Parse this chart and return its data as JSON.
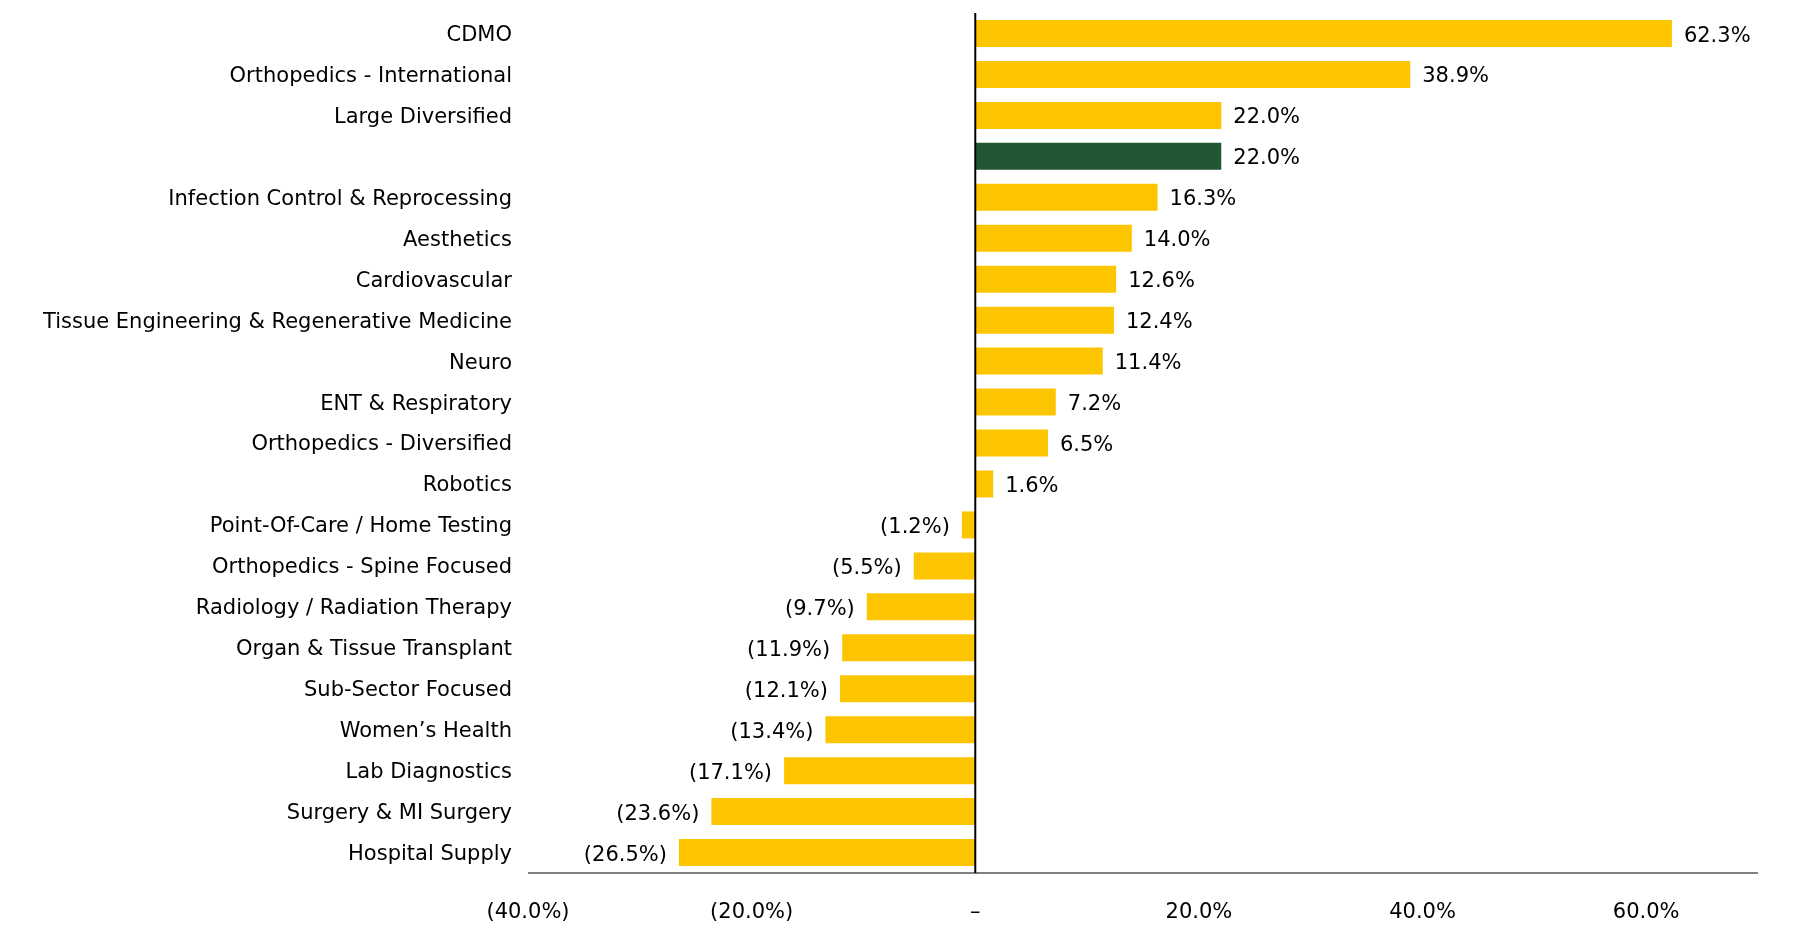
{
  "chart_data": {
    "type": "bar",
    "orientation": "horizontal",
    "categories": [
      "CDMO",
      "Orthopedics - International",
      "Large Diversified",
      null,
      "Infection Control & Reprocessing",
      "Aesthetics",
      "Cardiovascular",
      "Tissue Engineering & Regenerative Medicine",
      "Neuro",
      "ENT & Respiratory",
      "Orthopedics - Diversified",
      "Robotics",
      "Point-Of-Care / Home Testing",
      "Orthopedics - Spine Focused",
      "Radiology / Radiation Therapy",
      "Organ & Tissue Transplant",
      "Sub-Sector Focused",
      "Women’s Health",
      "Lab Diagnostics",
      "Surgery & MI Surgery",
      "Hospital Supply"
    ],
    "values": [
      62.3,
      38.9,
      22.0,
      22.0,
      16.3,
      14.0,
      12.6,
      12.4,
      11.4,
      7.2,
      6.5,
      1.6,
      -1.2,
      -5.5,
      -9.7,
      -11.9,
      -12.1,
      -13.4,
      -17.1,
      -23.6,
      -26.5
    ],
    "colors": [
      "#fdc500",
      "#fdc500",
      "#fdc500",
      "#215732",
      "#fdc500",
      "#fdc500",
      "#fdc500",
      "#fdc500",
      "#fdc500",
      "#fdc500",
      "#fdc500",
      "#fdc500",
      "#fdc500",
      "#fdc500",
      "#fdc500",
      "#fdc500",
      "#fdc500",
      "#fdc500",
      "#fdc500",
      "#fdc500",
      "#fdc500"
    ],
    "value_labels": [
      "62.3%",
      "38.9%",
      "22.0%",
      "22.0%",
      "16.3%",
      "14.0%",
      "12.6%",
      "12.4%",
      "11.4%",
      "7.2%",
      "6.5%",
      "1.6%",
      "(1.2%)",
      "(5.5%)",
      "(9.7%)",
      "(11.9%)",
      "(12.1%)",
      "(13.4%)",
      "(17.1%)",
      "(23.6%)",
      "(26.5%)"
    ],
    "xlim": [
      -40,
      70
    ],
    "xticks": [
      {
        "value": -40,
        "label": "(40.0%)"
      },
      {
        "value": -20,
        "label": "(20.0%)"
      },
      {
        "value": 0,
        "label": "–"
      },
      {
        "value": 20,
        "label": "20.0%"
      },
      {
        "value": 40,
        "label": "40.0%"
      },
      {
        "value": 60,
        "label": "60.0%"
      }
    ],
    "ref_lines": [
      {
        "axis": "x",
        "value": 0,
        "color": "#000000"
      }
    ],
    "grid": false,
    "legend": false
  }
}
